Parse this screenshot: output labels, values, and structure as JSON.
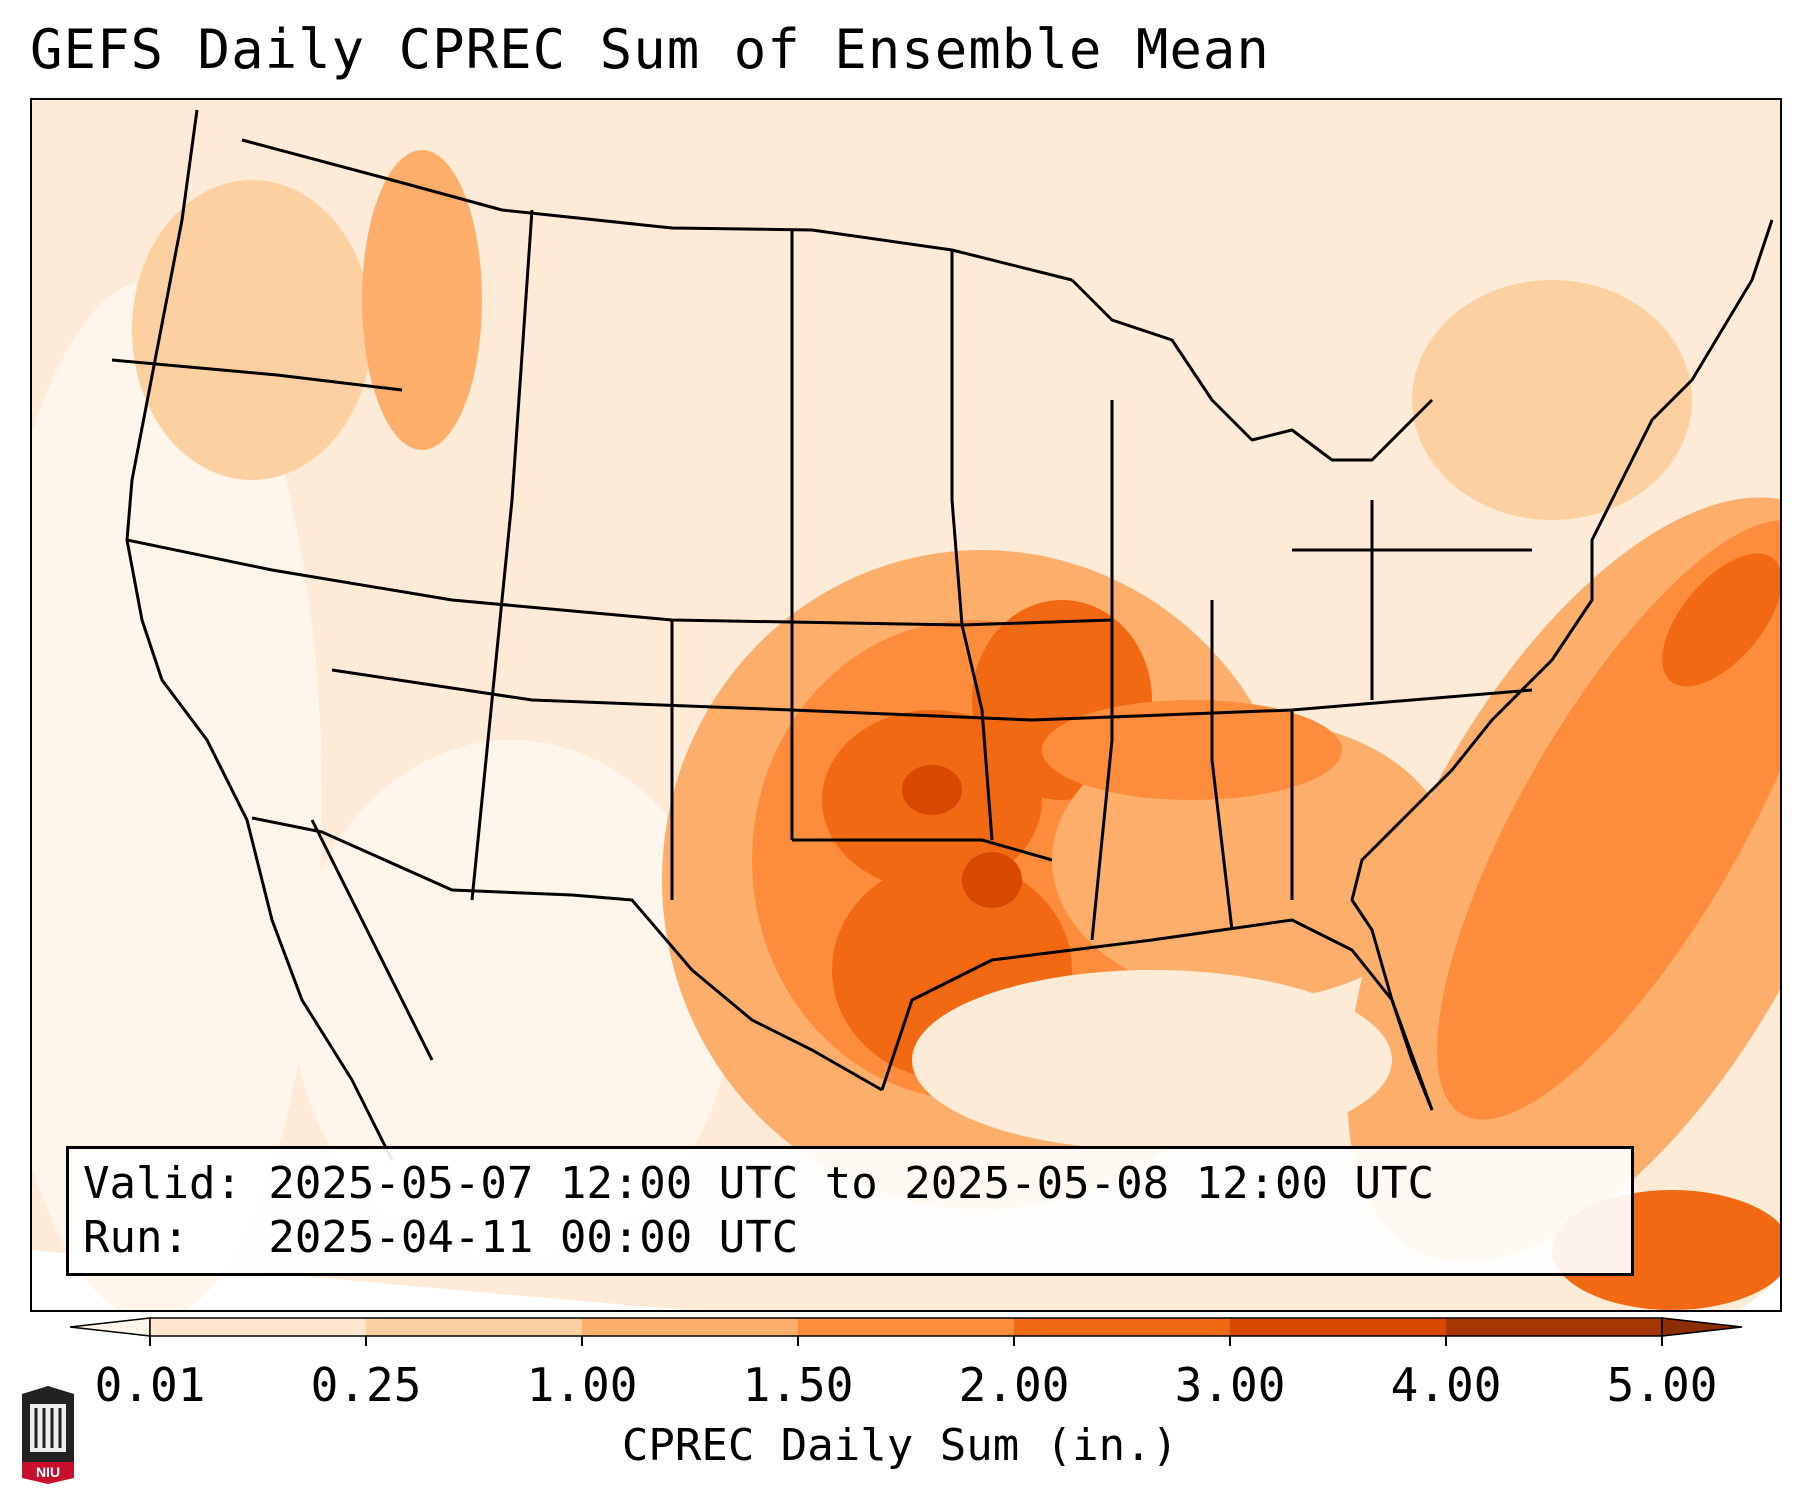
{
  "title": "GEFS Daily CPREC Sum of Ensemble Mean",
  "info": {
    "valid_line": "Valid: 2025-05-07 12:00 UTC to 2025-05-08 12:00 UTC",
    "run_line": "Run:   2025-04-11 00:00 UTC"
  },
  "colorbar": {
    "label": "CPREC Daily Sum (in.)",
    "ticks": [
      "0.01",
      "0.25",
      "1.00",
      "1.50",
      "2.00",
      "3.00",
      "4.00",
      "5.00"
    ],
    "colors": [
      "#fff5eb",
      "#fee6ce",
      "#fdd0a2",
      "#fdae6b",
      "#fd8d3c",
      "#f16913",
      "#d94801",
      "#a63603"
    ],
    "extend": "both"
  },
  "logo": {
    "text": "NIU",
    "accent_color": "#c8102e"
  }
}
